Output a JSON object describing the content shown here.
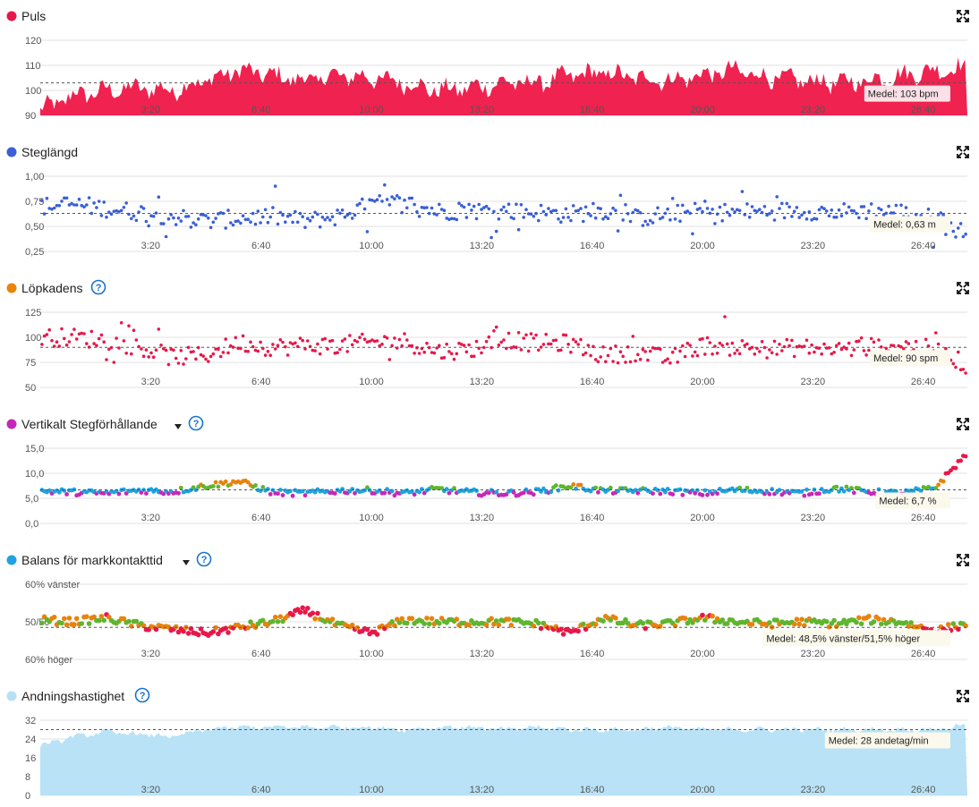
{
  "expand_icon": "expand-icon",
  "help_icon": "help-icon",
  "x_ticks": [
    "3:20",
    "6:40",
    "10:00",
    "13:20",
    "16:40",
    "20:00",
    "23:20",
    "26:40"
  ],
  "x_range_min": [
    0,
    28
  ],
  "panels": [
    {
      "key": "puls",
      "title": "Puls",
      "color": "#e8174a",
      "has_help": false,
      "has_dropdown": false,
      "avg_label": "Medel: 103 bpm",
      "y_ticks": [
        "120",
        "110",
        "100",
        "90"
      ]
    },
    {
      "key": "steglangd",
      "title": "Steglängd",
      "color": "#3a5fd6",
      "has_help": false,
      "has_dropdown": false,
      "avg_label": "Medel: 0,63 m",
      "y_ticks": [
        "1,00",
        "0,75",
        "0,50",
        "0,25"
      ]
    },
    {
      "key": "lopkadens",
      "title": "Löpkadens",
      "color": "#e8830b",
      "has_help": true,
      "has_dropdown": false,
      "avg_label": "Medel: 90 spm",
      "y_ticks": [
        "125",
        "100",
        "75",
        "50"
      ]
    },
    {
      "key": "vertikalt",
      "title": "Vertikalt Stegförhållande",
      "color": "#c727b8",
      "has_help": true,
      "has_dropdown": true,
      "avg_label": "Medel: 6,7 %",
      "y_ticks": [
        "15,0",
        "10,0",
        "5,0",
        "0,0"
      ]
    },
    {
      "key": "balans",
      "title": "Balans för markkontakttid",
      "color": "#1ea3e0",
      "has_help": true,
      "has_dropdown": true,
      "avg_label": "Medel: 48,5% vänster/51,5% höger",
      "y_ticks": [
        "60% vänster",
        "50/50",
        "60% höger"
      ]
    },
    {
      "key": "andning",
      "title": "Andningshastighet",
      "color": "#b7e0f5",
      "has_help": true,
      "has_dropdown": false,
      "avg_label": "Medel: 28 andetag/min",
      "y_ticks": [
        "32",
        "24",
        "16",
        "8",
        "0"
      ]
    }
  ],
  "chart_data": [
    {
      "type": "area",
      "title": "Puls",
      "unit": "bpm",
      "x_unit": "min",
      "x_range": [
        0,
        28
      ],
      "ylim": [
        90,
        120
      ],
      "grid": true,
      "average": 103,
      "x": [
        0,
        1,
        2,
        3,
        4,
        5,
        6,
        7,
        8,
        9,
        10,
        11,
        12,
        13,
        14,
        15,
        16,
        17,
        18,
        19,
        20,
        21,
        22,
        23,
        24,
        25,
        26,
        27,
        28
      ],
      "values": [
        92,
        98,
        100,
        101,
        100,
        104,
        108,
        106,
        104,
        106,
        105,
        103,
        100,
        101,
        103,
        103,
        106,
        107,
        105,
        104,
        106,
        108,
        105,
        104,
        103,
        104,
        106,
        108,
        109
      ]
    },
    {
      "type": "scatter",
      "title": "Steglängd",
      "unit": "m",
      "x_unit": "min",
      "x_range": [
        0,
        28
      ],
      "ylim": [
        0.25,
        1.0
      ],
      "grid": true,
      "average": 0.63,
      "x": [
        0,
        1,
        2,
        3,
        4,
        5,
        6,
        7,
        8,
        9,
        10,
        11,
        12,
        13,
        14,
        15,
        16,
        17,
        18,
        19,
        20,
        21,
        22,
        23,
        24,
        25,
        26,
        27,
        28
      ],
      "values": [
        0.7,
        0.72,
        0.68,
        0.64,
        0.6,
        0.55,
        0.58,
        0.6,
        0.55,
        0.6,
        0.72,
        0.74,
        0.65,
        0.66,
        0.65,
        0.64,
        0.62,
        0.66,
        0.58,
        0.62,
        0.65,
        0.64,
        0.65,
        0.66,
        0.64,
        0.66,
        0.64,
        0.58,
        0.42
      ]
    },
    {
      "type": "scatter",
      "title": "Löpkadens",
      "unit": "spm",
      "x_unit": "min",
      "x_range": [
        0,
        28
      ],
      "ylim": [
        50,
        125
      ],
      "grid": true,
      "average": 90,
      "x": [
        0,
        1,
        2,
        3,
        4,
        5,
        6,
        7,
        8,
        9,
        10,
        11,
        12,
        13,
        14,
        15,
        16,
        17,
        18,
        19,
        20,
        21,
        22,
        23,
        24,
        25,
        26,
        27,
        28
      ],
      "values": [
        100,
        100,
        97,
        90,
        80,
        82,
        95,
        90,
        92,
        92,
        95,
        96,
        86,
        88,
        98,
        94,
        94,
        82,
        85,
        78,
        92,
        90,
        88,
        90,
        88,
        90,
        92,
        88,
        72
      ]
    },
    {
      "type": "scatter",
      "title": "Vertikalt Stegförhållande",
      "unit": "%",
      "x_unit": "min",
      "x_range": [
        0,
        28
      ],
      "ylim": [
        0,
        15
      ],
      "grid": true,
      "average": 6.7,
      "x": [
        0,
        1,
        2,
        3,
        4,
        5,
        6,
        7,
        8,
        9,
        10,
        11,
        12,
        13,
        14,
        15,
        16,
        17,
        18,
        19,
        20,
        21,
        22,
        23,
        24,
        25,
        26,
        27,
        28
      ],
      "values": [
        6.5,
        6.2,
        6.0,
        6.6,
        6.3,
        7.5,
        8.4,
        6.2,
        6.0,
        6.5,
        6.6,
        6.0,
        6.8,
        6.2,
        6.0,
        6.3,
        7.5,
        6.5,
        6.5,
        6.4,
        6.0,
        6.7,
        6.4,
        6.0,
        7.0,
        6.3,
        6.0,
        7.0,
        14.0
      ]
    },
    {
      "type": "scatter",
      "title": "Balans för markkontakttid",
      "unit": "% vänster",
      "x_unit": "min",
      "x_range": [
        0,
        28
      ],
      "ylim": [
        40,
        60
      ],
      "grid": true,
      "average": 48.5,
      "x": [
        0,
        1,
        2,
        3,
        4,
        5,
        6,
        7,
        8,
        9,
        10,
        11,
        12,
        13,
        14,
        15,
        16,
        17,
        18,
        19,
        20,
        21,
        22,
        23,
        24,
        25,
        26,
        27,
        28
      ],
      "values": [
        50.5,
        50.0,
        51.0,
        49.0,
        48.0,
        47.0,
        48.5,
        50.0,
        53.0,
        49.0,
        47.0,
        50.5,
        50.0,
        50.0,
        50.0,
        49.5,
        47.0,
        51.0,
        49.0,
        49.5,
        51.0,
        50.0,
        49.5,
        50.0,
        49.5,
        50.5,
        50.0,
        47.5,
        49.5
      ]
    },
    {
      "type": "area",
      "title": "Andningshastighet",
      "unit": "andetag/min",
      "x_unit": "min",
      "x_range": [
        0,
        28
      ],
      "ylim": [
        0,
        32
      ],
      "grid": true,
      "average": 28,
      "x": [
        0,
        1,
        2,
        3,
        4,
        5,
        6,
        7,
        8,
        9,
        10,
        11,
        12,
        13,
        14,
        15,
        16,
        17,
        18,
        19,
        20,
        21,
        22,
        23,
        24,
        25,
        26,
        27,
        28
      ],
      "values": [
        21,
        25,
        27,
        26,
        25,
        28,
        29,
        29,
        29,
        29,
        29,
        28,
        29,
        29,
        28,
        29,
        28,
        28,
        28,
        29,
        28,
        28,
        28,
        28,
        28,
        28,
        28,
        28,
        30
      ]
    }
  ]
}
